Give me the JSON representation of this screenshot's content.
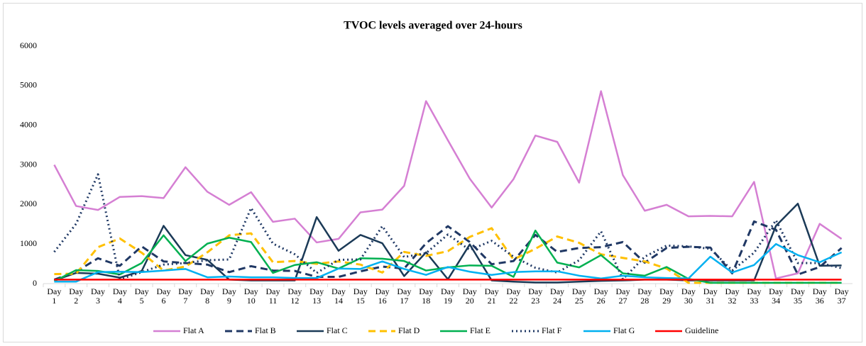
{
  "chart_data": {
    "type": "line",
    "title": "TVOC levels averaged over 24-hours",
    "categories": [
      "Day 1",
      "Day 2",
      "Day 3",
      "Day 4",
      "Day 5",
      "Day 6",
      "Day 7",
      "Day 8",
      "Day 9",
      "Day 10",
      "Day 11",
      "Day 12",
      "Day 13",
      "Day 14",
      "Day 15",
      "Day 16",
      "Day 17",
      "Day 18",
      "Day 19",
      "Day 20",
      "Day 21",
      "Day 22",
      "Day 23",
      "Day 24",
      "Day 25",
      "Day 26",
      "Day 27",
      "Day 28",
      "Day 29",
      "Day 30",
      "Day 31",
      "Day 32",
      "Day 33",
      "Day 34",
      "Day 35",
      "Day 36",
      "Day 37"
    ],
    "ylim": [
      0,
      6000
    ],
    "yticks": [
      0,
      1000,
      2000,
      3000,
      4000,
      5000,
      6000
    ],
    "grid": false,
    "legend": "bottom",
    "series": [
      {
        "name": "Flat A",
        "color": "#d57fd3",
        "style": "solid",
        "values": [
          3000,
          1960,
          1860,
          2190,
          2210,
          2160,
          2940,
          2320,
          1990,
          2310,
          1560,
          1640,
          1040,
          1130,
          1800,
          1870,
          2470,
          4610,
          3620,
          2650,
          1920,
          2640,
          3740,
          3580,
          2550,
          4860,
          2740,
          1840,
          1990,
          1700,
          1710,
          1700,
          2570,
          130,
          260,
          1510,
          1130
        ]
      },
      {
        "name": "Flat B",
        "color": "#203864",
        "style": "dashed",
        "values": [
          100,
          300,
          640,
          450,
          940,
          560,
          520,
          480,
          290,
          440,
          330,
          320,
          170,
          170,
          310,
          430,
          380,
          1020,
          1450,
          1050,
          490,
          570,
          1230,
          800,
          900,
          920,
          1050,
          530,
          900,
          930,
          910,
          260,
          1570,
          1360,
          230,
          420,
          900
        ]
      },
      {
        "name": "Flat C",
        "color": "#1b3a57",
        "style": "solid",
        "values": [
          80,
          270,
          250,
          150,
          320,
          1460,
          720,
          600,
          100,
          80,
          80,
          80,
          1680,
          830,
          1230,
          1020,
          190,
          790,
          110,
          990,
          80,
          50,
          30,
          30,
          50,
          70,
          80,
          100,
          100,
          80,
          80,
          80,
          80,
          1460,
          2020,
          450,
          460
        ]
      },
      {
        "name": "Flat D",
        "color": "#ffc000",
        "style": "dashed",
        "values": [
          240,
          250,
          920,
          1140,
          780,
          330,
          430,
          790,
          1220,
          1270,
          540,
          570,
          500,
          560,
          480,
          280,
          800,
          700,
          820,
          1180,
          1400,
          610,
          880,
          1190,
          1030,
          740,
          650,
          560,
          380,
          20,
          20,
          20,
          20,
          20,
          20,
          20,
          20
        ]
      },
      {
        "name": "Flat E",
        "color": "#00b050",
        "style": "solid",
        "values": [
          60,
          340,
          320,
          230,
          520,
          1220,
          570,
          1010,
          1160,
          1050,
          270,
          470,
          540,
          380,
          640,
          630,
          570,
          330,
          410,
          460,
          450,
          170,
          1340,
          530,
          410,
          720,
          260,
          200,
          420,
          120,
          20,
          20,
          20,
          20,
          20,
          20,
          20
        ]
      },
      {
        "name": "Flat F",
        "color": "#1f3864",
        "style": "dotted",
        "values": [
          800,
          1510,
          2760,
          110,
          290,
          480,
          520,
          590,
          610,
          1910,
          1010,
          740,
          270,
          600,
          610,
          1450,
          670,
          770,
          1240,
          850,
          1080,
          680,
          400,
          280,
          590,
          1320,
          110,
          680,
          960,
          940,
          880,
          330,
          780,
          1600,
          520,
          520,
          390
        ]
      },
      {
        "name": "Flat G",
        "color": "#00b0f0",
        "style": "solid",
        "values": [
          50,
          50,
          290,
          300,
          290,
          330,
          370,
          160,
          180,
          160,
          160,
          140,
          140,
          380,
          370,
          560,
          370,
          220,
          420,
          300,
          220,
          290,
          310,
          310,
          200,
          130,
          200,
          160,
          140,
          130,
          680,
          280,
          470,
          1000,
          720,
          540,
          790
        ]
      },
      {
        "name": "Guideline",
        "color": "#ff0000",
        "style": "solid",
        "values": [
          100,
          100,
          100,
          100,
          100,
          100,
          100,
          100,
          100,
          100,
          100,
          100,
          100,
          100,
          100,
          100,
          100,
          100,
          100,
          100,
          100,
          100,
          100,
          100,
          100,
          100,
          100,
          100,
          100,
          100,
          100,
          100,
          100,
          100,
          100,
          100,
          100
        ]
      }
    ]
  }
}
